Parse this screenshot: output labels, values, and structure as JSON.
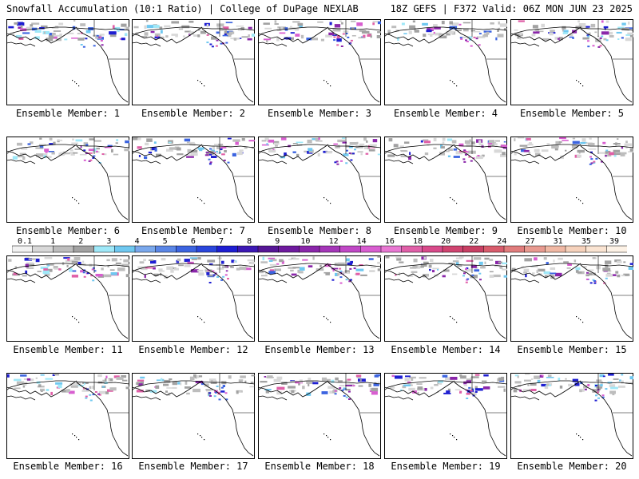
{
  "header": {
    "title_left": "Snowfall Accumulation (10:1 Ratio) | College of DuPage NEXLAB",
    "title_right": "18Z GEFS | F372 Valid: 06Z MON JUN 23 2025"
  },
  "panel_label_prefix": "Ensemble Member: ",
  "panels": [
    {
      "member": "1"
    },
    {
      "member": "2"
    },
    {
      "member": "3"
    },
    {
      "member": "4"
    },
    {
      "member": "5"
    },
    {
      "member": "6"
    },
    {
      "member": "7"
    },
    {
      "member": "8"
    },
    {
      "member": "9"
    },
    {
      "member": "10"
    },
    {
      "member": "11"
    },
    {
      "member": "12"
    },
    {
      "member": "13"
    },
    {
      "member": "14"
    },
    {
      "member": "15"
    },
    {
      "member": "16"
    },
    {
      "member": "17"
    },
    {
      "member": "18"
    },
    {
      "member": "19"
    },
    {
      "member": "20"
    }
  ],
  "colorbar": {
    "labels": [
      "0.1",
      "1",
      "2",
      "3",
      "4",
      "5",
      "6",
      "7",
      "8",
      "9",
      "10",
      "12",
      "14",
      "16",
      "18",
      "20",
      "22",
      "24",
      "27",
      "31",
      "35",
      "39"
    ],
    "colors": [
      "#f2f2f2",
      "#d8d8d8",
      "#bdbdbd",
      "#a2a2a2",
      "#9fe8f8",
      "#6fc8f0",
      "#7aa8ec",
      "#5a86e6",
      "#3c64e0",
      "#2a46dc",
      "#1e1ed2",
      "#3c18b4",
      "#561696",
      "#6e1a9e",
      "#8a26aa",
      "#a436b8",
      "#c048c6",
      "#d85ed0",
      "#e878d2",
      "#e060a8",
      "#d84a8a",
      "#d04470",
      "#c84064",
      "#d85c6c",
      "#e07c7c",
      "#e89a90",
      "#f0b8a4",
      "#f6d2bc",
      "#fae4d2",
      "#fdf2e6"
    ]
  }
}
